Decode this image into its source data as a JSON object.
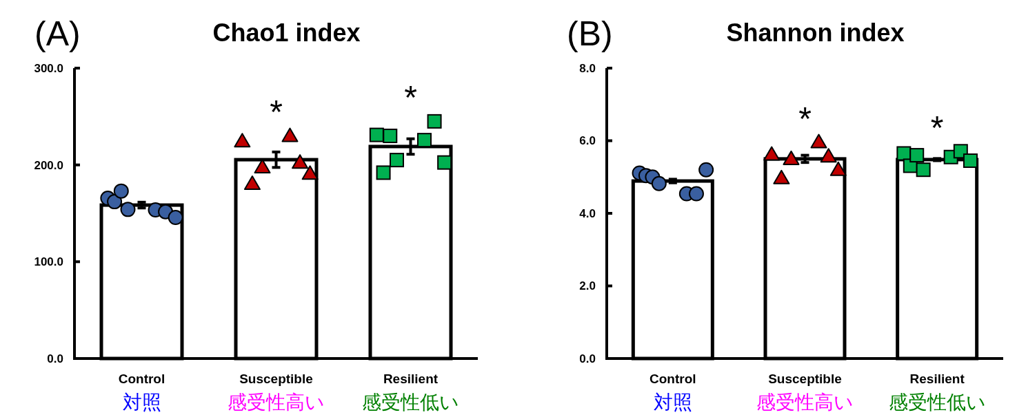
{
  "chart_data": [
    {
      "type": "bar",
      "title": "Chao1 index",
      "categories": [
        "Control\n対照",
        "Susceptible\n感受性高い",
        "Resilient\n感受性低い"
      ],
      "ylim": [
        0,
        300
      ],
      "yticks": [
        {
          "value": 0,
          "label": "0.0"
        },
        {
          "value": 100,
          "label": "100.0"
        },
        {
          "value": 200,
          "label": "200.0"
        },
        {
          "value": 300,
          "label": "300.0"
        }
      ],
      "grid": false,
      "series": [
        {
          "type": "bar",
          "color": "#ffffff",
          "values": [
            158.5,
            205.4,
            219
          ],
          "errors": [
            3,
            8,
            8
          ]
        },
        {
          "type": "scatter",
          "marker": "circle",
          "color": "#3a5fa0",
          "x": [
            "Control\n対照",
            "Control\n対照",
            "Control\n対照",
            "Control\n対照",
            "Control\n対照",
            "Control\n対照",
            "Control\n対照"
          ],
          "values": [
            165.6,
            162,
            173,
            154,
            153.5,
            151.6,
            145.7
          ]
        },
        {
          "type": "scatter",
          "marker": "triangle",
          "color": "#c00000",
          "x": [
            "Susceptible\n感受性高い",
            "Susceptible\n感受性高い",
            "Susceptible\n感受性高い",
            "Susceptible\n感受性高い",
            "Susceptible\n感受性高い",
            "Susceptible\n感受性高い"
          ],
          "values": [
            224.5,
            180.5,
            197.6,
            230,
            202.5,
            191
          ]
        },
        {
          "type": "scatter",
          "marker": "square",
          "color": "#00b050",
          "x": [
            "Resilient\n感受性低い",
            "Resilient\n感受性低い",
            "Resilient\n感受性低い",
            "Resilient\n感受性低い",
            "Resilient\n感受性低い",
            "Resilient\n感受性低い",
            "Resilient\n感受性低い"
          ],
          "values": [
            231,
            192,
            230,
            205,
            225.6,
            245,
            202.5
          ]
        }
      ],
      "annotations": [
        "(A)",
        "*",
        "*"
      ]
    },
    {
      "type": "bar",
      "title": "Shannon index",
      "categories": [
        "Control\n対照",
        "Susceptible\n感受性高い",
        "Resilient\n感受性低い"
      ],
      "ylim": [
        0,
        8
      ],
      "yticks": [
        {
          "value": 0,
          "label": "0.0"
        },
        {
          "value": 2,
          "label": "2.0"
        },
        {
          "value": 4,
          "label": "4.0"
        },
        {
          "value": 6,
          "label": "6.0"
        },
        {
          "value": 8,
          "label": "8.0"
        }
      ],
      "grid": false,
      "series": [
        {
          "type": "bar",
          "color": "#ffffff",
          "values": [
            4.89,
            5.5,
            5.48
          ],
          "errors": [
            0.05,
            0.1,
            0.03
          ]
        },
        {
          "type": "scatter",
          "marker": "circle",
          "color": "#3a5fa0",
          "x": [
            "Control\n対照",
            "Control\n対照",
            "Control\n対照",
            "Control\n対照",
            "Control\n対照",
            "Control\n対照",
            "Control\n対照"
          ],
          "values": [
            5.11,
            5.04,
            5.0,
            4.82,
            4.54,
            4.54,
            5.2
          ]
        },
        {
          "type": "scatter",
          "marker": "triangle",
          "color": "#c00000",
          "x": [
            "Susceptible\n感受性高い",
            "Susceptible\n感受性高い",
            "Susceptible\n感受性高い",
            "Susceptible\n感受性高い",
            "Susceptible\n感受性高い",
            "Susceptible\n感受性高い"
          ],
          "values": [
            5.62,
            4.97,
            5.5,
            5.96,
            5.57,
            5.2
          ]
        },
        {
          "type": "scatter",
          "marker": "square",
          "color": "#00b050",
          "x": [
            "Resilient\n感受性低い",
            "Resilient\n感受性低い",
            "Resilient\n感受性低い",
            "Resilient\n感受性低い",
            "Resilient\n感受性低い",
            "Resilient\n感受性低い",
            "Resilient\n感受性低い"
          ],
          "values": [
            5.65,
            5.31,
            5.6,
            5.2,
            5.55,
            5.71,
            5.45
          ]
        }
      ],
      "annotations": [
        "(B)",
        "*",
        "*"
      ]
    }
  ]
}
